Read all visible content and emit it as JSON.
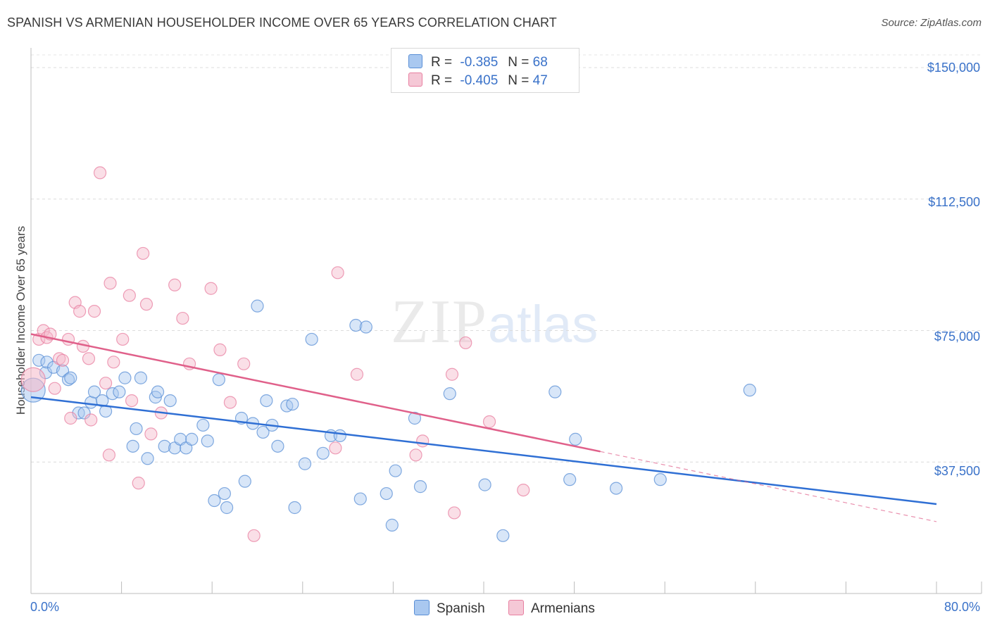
{
  "header": {
    "title": "SPANISH VS ARMENIAN HOUSEHOLDER INCOME OVER 65 YEARS CORRELATION CHART",
    "source": "Source: ZipAtlas.com"
  },
  "legend": {
    "rows": [
      {
        "r_label": "R =",
        "r_value": "-0.385",
        "n_label": "N =",
        "n_value": "68",
        "color": "#a9c8f0"
      },
      {
        "r_label": "R =",
        "r_value": "-0.405",
        "n_label": "N =",
        "n_value": "47",
        "color": "#f5b8c9"
      }
    ]
  },
  "watermark": {
    "zip": "ZIP",
    "atlas": "atlas"
  },
  "chart_data": {
    "type": "scatter",
    "ylabel": "Householder Income Over 65 years",
    "xlim": [
      0,
      80
    ],
    "ylim": [
      0,
      152000
    ],
    "x_tick_labels": [
      "0.0%",
      "80.0%"
    ],
    "y_ticks": [
      {
        "value": 37500,
        "label": "$37,500"
      },
      {
        "value": 75000,
        "label": "$75,000"
      },
      {
        "value": 112500,
        "label": "$112,500"
      },
      {
        "value": 150000,
        "label": "$150,000"
      }
    ],
    "grid": true,
    "legend_position": "top-center",
    "series": [
      {
        "name": "Spanish",
        "color": "#5a8fd6",
        "fill": "#a9c8f0",
        "trend": {
          "x": [
            0,
            80
          ],
          "y": [
            56000,
            25500
          ],
          "dashed_after": null
        },
        "points": [
          [
            0.2,
            58000,
            "big"
          ],
          [
            0.7,
            66500
          ],
          [
            1.3,
            63000
          ],
          [
            1.4,
            66000
          ],
          [
            2.0,
            64500
          ],
          [
            2.8,
            63500
          ],
          [
            3.3,
            61000
          ],
          [
            3.5,
            61500
          ],
          [
            4.2,
            51500
          ],
          [
            4.7,
            51500
          ],
          [
            5.3,
            54500
          ],
          [
            5.6,
            57500
          ],
          [
            6.3,
            55000
          ],
          [
            6.6,
            52000
          ],
          [
            7.2,
            57000
          ],
          [
            7.8,
            57500
          ],
          [
            9.0,
            42000
          ],
          [
            9.3,
            47000
          ],
          [
            8.3,
            61500
          ],
          [
            9.7,
            61500
          ],
          [
            10.3,
            38500
          ],
          [
            11.0,
            56000
          ],
          [
            11.2,
            57500
          ],
          [
            11.8,
            42000
          ],
          [
            12.3,
            55000
          ],
          [
            12.7,
            41500
          ],
          [
            13.2,
            44000
          ],
          [
            13.7,
            41500
          ],
          [
            14.2,
            44000
          ],
          [
            15.2,
            48000
          ],
          [
            15.6,
            43500
          ],
          [
            16.2,
            26500
          ],
          [
            16.6,
            61000
          ],
          [
            17.1,
            28500
          ],
          [
            17.3,
            24500
          ],
          [
            18.6,
            50000
          ],
          [
            18.9,
            32000
          ],
          [
            19.6,
            48500
          ],
          [
            20.0,
            82000
          ],
          [
            20.5,
            46000
          ],
          [
            20.8,
            55000
          ],
          [
            21.3,
            48000
          ],
          [
            21.8,
            42000
          ],
          [
            22.6,
            53500
          ],
          [
            23.1,
            54000
          ],
          [
            23.3,
            24500
          ],
          [
            24.2,
            37000
          ],
          [
            24.8,
            72500
          ],
          [
            25.8,
            40000
          ],
          [
            26.5,
            45000
          ],
          [
            27.3,
            45000
          ],
          [
            28.7,
            76500
          ],
          [
            29.6,
            76000
          ],
          [
            29.1,
            27000
          ],
          [
            31.4,
            28500
          ],
          [
            31.9,
            19500
          ],
          [
            32.2,
            35000
          ],
          [
            33.9,
            50000
          ],
          [
            34.4,
            30500
          ],
          [
            37.0,
            57000
          ],
          [
            40.1,
            31000
          ],
          [
            41.7,
            16500
          ],
          [
            46.3,
            57500
          ],
          [
            47.6,
            32500
          ],
          [
            48.1,
            44000
          ],
          [
            51.7,
            30000
          ],
          [
            55.6,
            32500
          ],
          [
            63.5,
            58000
          ]
        ]
      },
      {
        "name": "Armenians",
        "color": "#e87fa0",
        "fill": "#f5b8c9",
        "trend": {
          "x": [
            0,
            50.3,
            80
          ],
          "y": [
            74000,
            40500,
            20500
          ],
          "dashed_after": 50.3
        },
        "points": [
          [
            0.2,
            61000,
            "big"
          ],
          [
            0.7,
            72500
          ],
          [
            1.1,
            75000
          ],
          [
            1.4,
            73000
          ],
          [
            1.7,
            74000
          ],
          [
            2.1,
            58500
          ],
          [
            2.5,
            67000
          ],
          [
            2.8,
            66500
          ],
          [
            3.3,
            72500
          ],
          [
            3.5,
            50000
          ],
          [
            3.9,
            83000
          ],
          [
            4.3,
            80500
          ],
          [
            4.6,
            70500
          ],
          [
            5.1,
            67000
          ],
          [
            5.3,
            49500
          ],
          [
            5.6,
            80500
          ],
          [
            6.1,
            120000
          ],
          [
            6.6,
            60000
          ],
          [
            6.9,
            39500
          ],
          [
            7.0,
            88500
          ],
          [
            7.3,
            66000
          ],
          [
            8.1,
            72500
          ],
          [
            8.7,
            85000
          ],
          [
            8.9,
            55000
          ],
          [
            9.5,
            31500
          ],
          [
            9.9,
            97000
          ],
          [
            10.2,
            82500
          ],
          [
            10.6,
            45500
          ],
          [
            11.5,
            51500
          ],
          [
            12.7,
            88000
          ],
          [
            13.4,
            78500
          ],
          [
            14.0,
            65500
          ],
          [
            15.9,
            87000
          ],
          [
            16.7,
            69500
          ],
          [
            17.6,
            54500
          ],
          [
            18.8,
            65500
          ],
          [
            19.7,
            16500
          ],
          [
            26.9,
            41500
          ],
          [
            27.1,
            91500
          ],
          [
            28.8,
            62500
          ],
          [
            34.0,
            39500
          ],
          [
            34.6,
            43500
          ],
          [
            37.2,
            62500
          ],
          [
            37.4,
            23000
          ],
          [
            38.4,
            71500
          ],
          [
            40.5,
            49000
          ],
          [
            43.5,
            29500
          ]
        ]
      }
    ]
  }
}
